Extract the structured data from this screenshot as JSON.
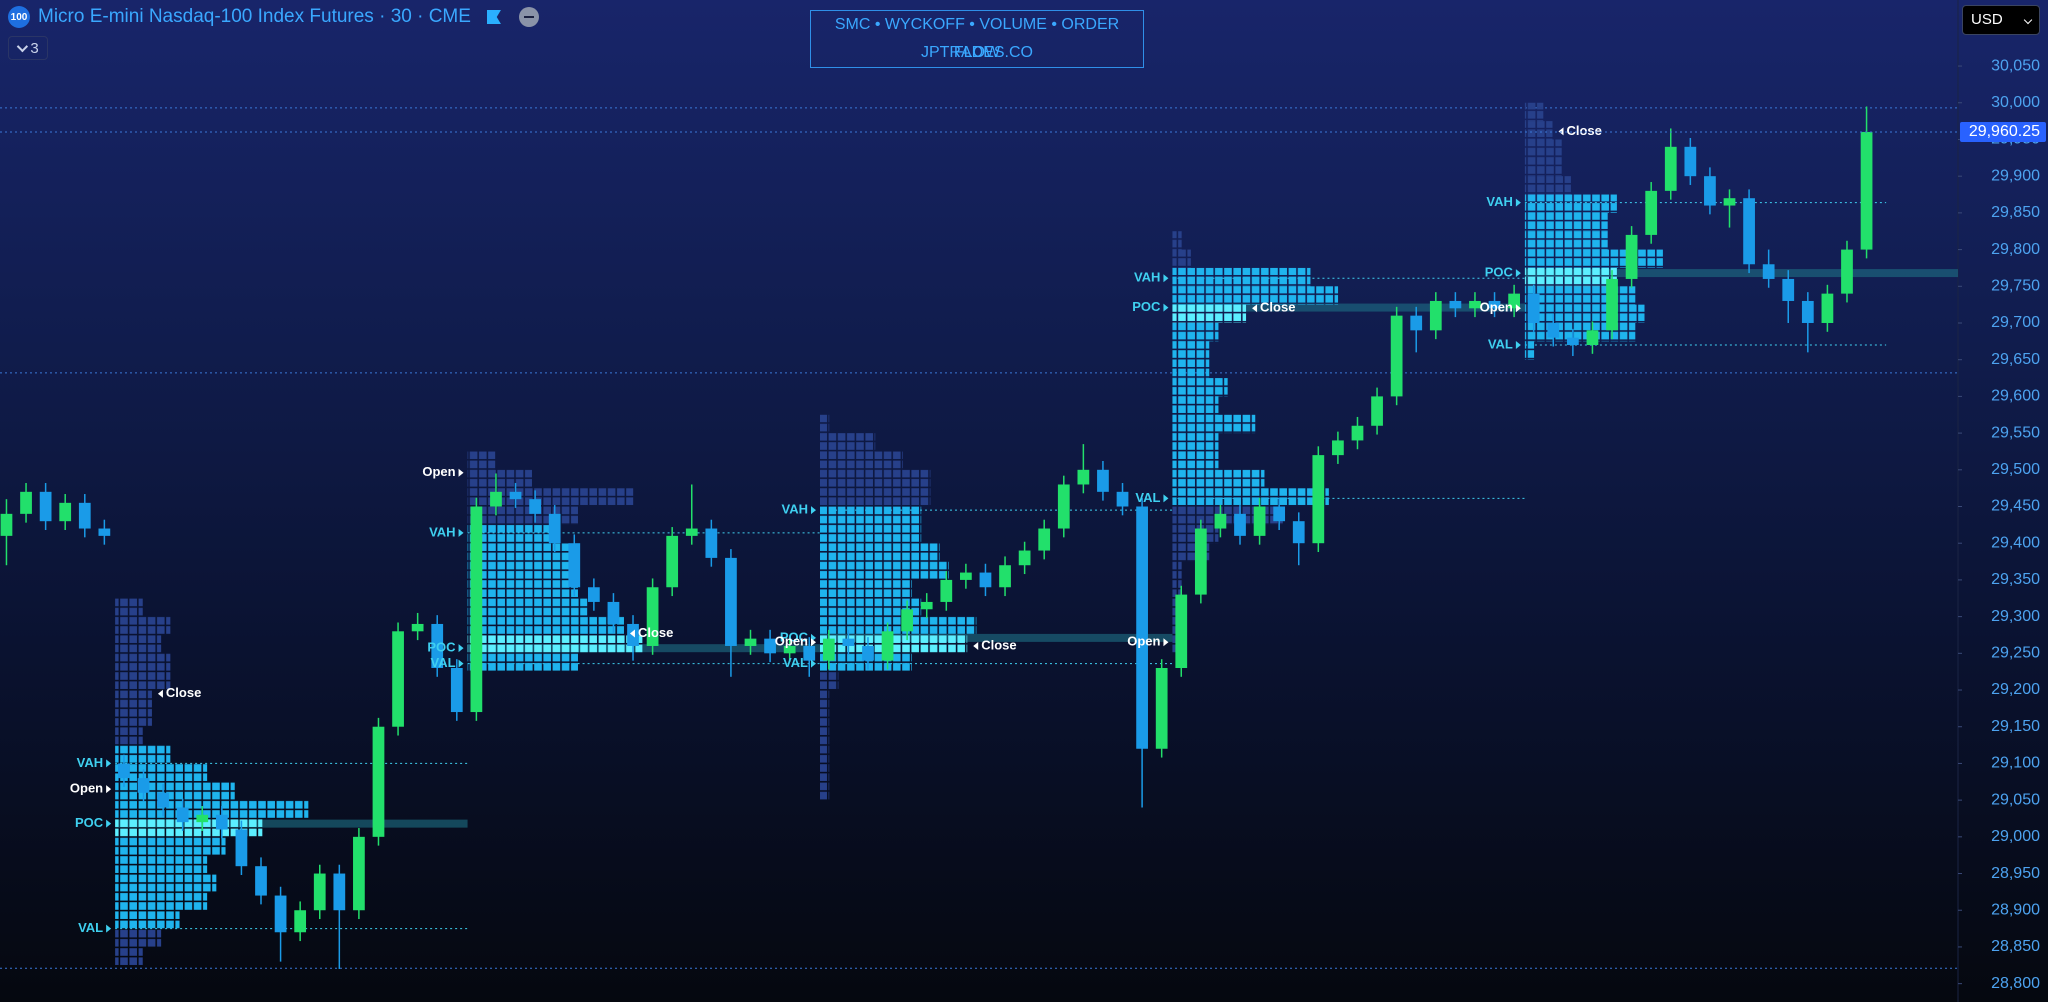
{
  "header": {
    "icon": "100",
    "title": "Micro E-mini Nasdaq-100 Index Futures · 30 · CME",
    "indicator_count": "3"
  },
  "banner": [
    "SMC • WYCKOFF • VOLUME • ORDER FLOW",
    "JPTRADES.CO"
  ],
  "currency": "USD",
  "chart_data": {
    "type": "candlestick",
    "up_color": "#22e06b",
    "down_color": "#1a9be8",
    "ylim": [
      28775,
      30140
    ],
    "yticks": [
      {
        "value": 28800,
        "label": "28,800"
      },
      {
        "value": 28850,
        "label": "28,850"
      },
      {
        "value": 28900,
        "label": "28,900"
      },
      {
        "value": 28950,
        "label": "28,950"
      },
      {
        "value": 29000,
        "label": "29,000"
      },
      {
        "value": 29050,
        "label": "29,050"
      },
      {
        "value": 29100,
        "label": "29,100"
      },
      {
        "value": 29150,
        "label": "29,150"
      },
      {
        "value": 29200,
        "label": "29,200"
      },
      {
        "value": 29250,
        "label": "29,250"
      },
      {
        "value": 29300,
        "label": "29,300"
      },
      {
        "value": 29350,
        "label": "29,350"
      },
      {
        "value": 29400,
        "label": "29,400"
      },
      {
        "value": 29450,
        "label": "29,450"
      },
      {
        "value": 29500,
        "label": "29,500"
      },
      {
        "value": 29550,
        "label": "29,550"
      },
      {
        "value": 29600,
        "label": "29,600"
      },
      {
        "value": 29650,
        "label": "29,650"
      },
      {
        "value": 29700,
        "label": "29,700"
      },
      {
        "value": 29750,
        "label": "29,750"
      },
      {
        "value": 29800,
        "label": "29,800"
      },
      {
        "value": 29850,
        "label": "29,850"
      },
      {
        "value": 29900,
        "label": "29,900"
      },
      {
        "value": 29950,
        "label": "29,950"
      },
      {
        "value": 30000,
        "label": "30,000"
      },
      {
        "value": 30050,
        "label": "30,050"
      }
    ],
    "last_price": {
      "value": 29960.25,
      "label": "29,960.25"
    },
    "dotted_levels": [
      29993,
      29632,
      28821
    ],
    "open": [
      29410,
      29440,
      29470,
      29430,
      29455,
      29420,
      29100,
      29080,
      29060,
      29040,
      29020,
      29030,
      29010,
      28960,
      28920,
      28870,
      28900,
      28950,
      28900,
      29000,
      29150,
      29280,
      29290,
      29230,
      29170,
      29450,
      29470,
      29460,
      29440,
      29400,
      29340,
      29320,
      29290,
      29260,
      29340,
      29410,
      29420,
      29380,
      29260,
      29270,
      29250,
      29260,
      29240,
      29270,
      29260,
      29240,
      29280,
      29310,
      29320,
      29350,
      29360,
      29340,
      29370,
      29390,
      29420,
      29480,
      29500,
      29470,
      29450,
      29120,
      29230,
      29330,
      29420,
      29440,
      29410,
      29450,
      29430,
      29400,
      29520,
      29540,
      29560,
      29600,
      29710,
      29690,
      29730,
      29720,
      29730,
      29720,
      29740,
      29700,
      29680,
      29670,
      29690,
      29760,
      29820,
      29880,
      29940,
      29900,
      29860,
      29870,
      29780,
      29760,
      29730,
      29700,
      29740,
      29800
    ],
    "high": [
      29460,
      29482,
      29482,
      29467,
      29467,
      29432,
      29112,
      29092,
      29072,
      29052,
      29042,
      29042,
      29022,
      28972,
      28932,
      28912,
      28962,
      28962,
      29012,
      29162,
      29292,
      29305,
      29302,
      29242,
      29462,
      29495,
      29482,
      29472,
      29452,
      29412,
      29352,
      29332,
      29302,
      29352,
      29422,
      29480,
      29432,
      29392,
      29282,
      29282,
      29272,
      29272,
      29282,
      29282,
      29272,
      29292,
      29322,
      29332,
      29362,
      29372,
      29372,
      29382,
      29402,
      29432,
      29492,
      29535,
      29512,
      29482,
      29462,
      29242,
      29342,
      29432,
      29452,
      29452,
      29462,
      29462,
      29442,
      29532,
      29552,
      29572,
      29612,
      29722,
      29722,
      29742,
      29742,
      29742,
      29742,
      29752,
      29752,
      29712,
      29692,
      29702,
      29772,
      29832,
      29892,
      29965,
      29952,
      29912,
      29882,
      29882,
      29800,
      29772,
      29742,
      29752,
      29812,
      29995
    ],
    "low": [
      29370,
      29428,
      29418,
      29418,
      29408,
      29398,
      29068,
      29048,
      29028,
      29008,
      29008,
      28998,
      28948,
      28908,
      28830,
      28858,
      28888,
      28820,
      28888,
      28988,
      29138,
      29268,
      29218,
      29158,
      29158,
      29438,
      29448,
      29428,
      29388,
      29328,
      29308,
      29278,
      29240,
      29248,
      29328,
      29398,
      29368,
      29218,
      29248,
      29238,
      29238,
      29218,
      29228,
      29248,
      29228,
      29228,
      29268,
      29298,
      29308,
      29338,
      29328,
      29328,
      29358,
      29378,
      29408,
      29468,
      29458,
      29438,
      29040,
      29108,
      29218,
      29318,
      29408,
      29398,
      29398,
      29418,
      29370,
      29388,
      29508,
      29528,
      29548,
      29588,
      29660,
      29678,
      29708,
      29708,
      29708,
      29708,
      29688,
      29668,
      29655,
      29658,
      29678,
      29748,
      29808,
      29868,
      29888,
      29848,
      29830,
      29768,
      29748,
      29700,
      29660,
      29688,
      29728,
      29788
    ],
    "close": [
      29440,
      29470,
      29430,
      29455,
      29420,
      29410,
      29080,
      29060,
      29040,
      29020,
      29030,
      29010,
      28960,
      28920,
      28870,
      28900,
      28950,
      28900,
      29000,
      29150,
      29280,
      29290,
      29230,
      29170,
      29450,
      29470,
      29460,
      29440,
      29400,
      29340,
      29320,
      29290,
      29260,
      29340,
      29410,
      29420,
      29380,
      29260,
      29270,
      29250,
      29260,
      29240,
      29270,
      29260,
      29240,
      29280,
      29310,
      29320,
      29350,
      29360,
      29340,
      29370,
      29390,
      29420,
      29480,
      29500,
      29470,
      29450,
      29120,
      29230,
      29330,
      29420,
      29440,
      29410,
      29450,
      29430,
      29400,
      29520,
      29540,
      29560,
      29600,
      29710,
      29690,
      29730,
      29720,
      29730,
      29720,
      29740,
      29700,
      29680,
      29670,
      29690,
      29760,
      29820,
      29880,
      29940,
      29900,
      29860,
      29870,
      29780,
      29760,
      29730,
      29700,
      29740,
      29800,
      29960.25
    ],
    "profile_colors": {
      "value_area": "#1fb4ee",
      "outside": "#27408a",
      "poc": "#5cefff",
      "label": "#3fd0f0",
      "session_label": "#ffffff",
      "poc_line": "#1e6f86",
      "level_line": "#3a78d8"
    },
    "profiles": [
      {
        "start": 6,
        "vah": {
          "label": "VAH",
          "price": 29100
        },
        "poc": {
          "label": "POC",
          "price": 29018
        },
        "val": {
          "label": "VAL",
          "price": 28875
        },
        "open": {
          "label": "Open",
          "price": 29065
        },
        "close": {
          "label": "Close",
          "price": 29195
        },
        "prices": [
          28825,
          28850,
          28875,
          28900,
          28925,
          28950,
          28975,
          29000,
          29025,
          29050,
          29075,
          29100,
          29125,
          29150,
          29175,
          29200,
          29225,
          29250,
          29275,
          29300
        ],
        "volumes": [
          3,
          5,
          7,
          10,
          11,
          10,
          12,
          16,
          21,
          13,
          10,
          6,
          3,
          4,
          4,
          6,
          6,
          5,
          6,
          3
        ]
      },
      {
        "start": 24,
        "vah": {
          "label": "VAH",
          "price": 29414
        },
        "poc": {
          "label": "POC",
          "price": 29257
        },
        "val": {
          "label": "VAL",
          "price": 29236
        },
        "open": {
          "label": "Open",
          "price": 29496
        },
        "close": {
          "label": "Close",
          "price": 29277
        },
        "prices": [
          29225,
          29250,
          29275,
          29300,
          29325,
          29350,
          29375,
          29400,
          29425,
          29450,
          29475,
          29500
        ],
        "volumes": [
          12,
          19,
          17,
          13,
          12,
          11,
          11,
          10,
          12,
          18,
          7,
          3
        ]
      },
      {
        "start": 42,
        "vah": {
          "label": "VAH",
          "price": 29445
        },
        "poc": {
          "label": "POC",
          "price": 29271
        },
        "val": {
          "label": "VAL",
          "price": 29236
        },
        "open": {
          "label": "Open",
          "price": 29265
        },
        "close": {
          "label": "Close",
          "price": 29260
        },
        "prices": [
          29050,
          29075,
          29100,
          29125,
          29150,
          29175,
          29200,
          29225,
          29250,
          29275,
          29300,
          29325,
          29350,
          29375,
          29400,
          29425,
          29450,
          29475,
          29500,
          29525,
          29550
        ],
        "volumes": [
          1,
          1,
          1,
          1,
          1,
          1,
          2,
          10,
          16,
          17,
          11,
          10,
          14,
          13,
          11,
          11,
          12,
          12,
          9,
          6,
          1
        ]
      },
      {
        "start": 60,
        "vah": {
          "label": "VAH",
          "price": 29761
        },
        "poc": {
          "label": "POC",
          "price": 29721
        },
        "val": {
          "label": "VAL",
          "price": 29461
        },
        "open": {
          "label": "Open",
          "price": 29265
        },
        "close": {
          "label": "Close",
          "price": 29720
        },
        "prices": [
          29250,
          29275,
          29300,
          29325,
          29350,
          29375,
          29400,
          29425,
          29450,
          29475,
          29500,
          29525,
          29550,
          29575,
          29600,
          29625,
          29650,
          29675,
          29700,
          29725,
          29750,
          29775,
          29800
        ],
        "volumes": [
          1,
          1,
          1,
          1,
          1,
          4,
          5,
          12,
          17,
          10,
          5,
          5,
          9,
          5,
          6,
          4,
          4,
          5,
          8,
          18,
          15,
          2,
          1
        ]
      },
      {
        "start": 78,
        "vah": {
          "label": "VAH",
          "price": 29864
        },
        "poc": {
          "label": "POC",
          "price": 29768
        },
        "val": {
          "label": "VAL",
          "price": 29670
        },
        "open": {
          "label": "Open",
          "price": 29720
        },
        "close": {
          "label": "Close",
          "price": 29961
        },
        "prices": [
          29650,
          29675,
          29700,
          29725,
          29750,
          29775,
          29800,
          29825,
          29850,
          29875,
          29900,
          29925,
          29950,
          29975
        ],
        "volumes": [
          1,
          12,
          13,
          12,
          10,
          15,
          9,
          9,
          10,
          5,
          4,
          4,
          3,
          2
        ]
      }
    ]
  }
}
